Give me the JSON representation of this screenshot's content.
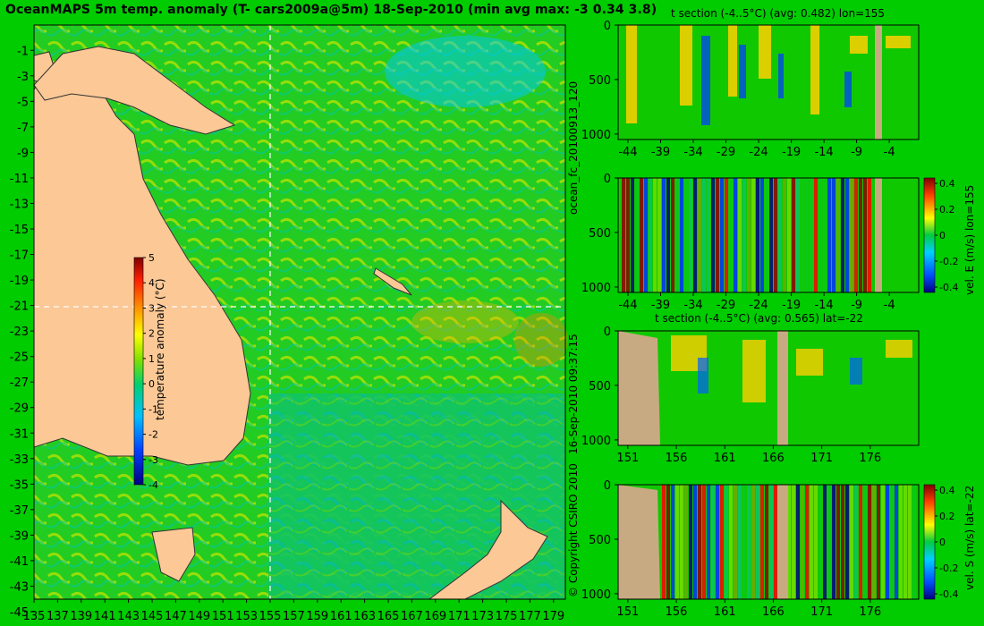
{
  "title": "OceanMAPS 5m temp. anomaly (T- cars2009a@5m) 18-Sep-2010 (min avg max: -3 0.34 3.8)",
  "colors": {
    "background": "#00cc00",
    "land": "#fbc896",
    "section_land": "#c8aa82",
    "dashed_line": "#ffffff"
  },
  "side_labels": {
    "forecast_id": "ocean_fc_20100913_120",
    "run_time": "16-Sep-2010 09:37:15",
    "copyright": "© Copyright CSIRO 2010"
  },
  "chart_data": [
    {
      "type": "heatmap",
      "id": "map",
      "title": "OceanMAPS 5m temp. anomaly (T- cars2009a@5m) 18-Sep-2010 (min avg max: -3 0.34 3.8)",
      "x_ticks": [
        "135",
        "137",
        "139",
        "141",
        "143",
        "145",
        "147",
        "149",
        "151",
        "153",
        "155",
        "157",
        "159",
        "161",
        "163",
        "165",
        "167",
        "169",
        "171",
        "173",
        "175",
        "177",
        "179"
      ],
      "y_ticks": [
        "-1",
        "-3",
        "-5",
        "-7",
        "-9",
        "-11",
        "-13",
        "-15",
        "-17",
        "-19",
        "-21",
        "-23",
        "-25",
        "-27",
        "-29",
        "-31",
        "-33",
        "-35",
        "-37",
        "-39",
        "-41",
        "-43",
        "-45"
      ],
      "xlim": [
        135,
        180
      ],
      "ylim": [
        -45,
        0
      ],
      "section_lon": 155,
      "section_lat": -22,
      "stats": {
        "min": -3,
        "avg": 0.34,
        "max": 3.8
      },
      "colorbar": {
        "label": "temperature anomaly (°C)",
        "ticks": [
          "5",
          "4",
          "3",
          "2",
          "1",
          "0",
          "-1",
          "-2",
          "-3",
          "-4"
        ],
        "range": [
          -4,
          5
        ]
      }
    },
    {
      "type": "heatmap",
      "id": "t-section-lon",
      "title": "t section (-4..5°C) (avg: 0.482) lon=155",
      "x_ticks": [
        "-44",
        "-39",
        "-34",
        "-29",
        "-24",
        "-19",
        "-14",
        "-9",
        "-4"
      ],
      "y_ticks": [
        "0",
        "500",
        "1000"
      ],
      "avg": 0.482
    },
    {
      "type": "heatmap",
      "id": "vel-e-section",
      "title": "",
      "x_ticks": [
        "-44",
        "-39",
        "-34",
        "-29",
        "-24",
        "-19",
        "-14",
        "-9",
        "-4"
      ],
      "y_ticks": [
        "0",
        "500",
        "1000"
      ],
      "colorbar": {
        "label": "vel. E (m/s) lon=155",
        "ticks": [
          "0.4",
          "0.2",
          "0",
          "-0.2",
          "-0.4"
        ]
      }
    },
    {
      "type": "heatmap",
      "id": "t-section-lat",
      "title": "t section (-4..5°C) (avg: 0.565) lat=-22",
      "x_ticks": [
        "151",
        "156",
        "161",
        "166",
        "171",
        "176"
      ],
      "y_ticks": [
        "0",
        "500",
        "1000"
      ],
      "avg": 0.565
    },
    {
      "type": "heatmap",
      "id": "vel-s-section",
      "title": "",
      "x_ticks": [
        "151",
        "156",
        "161",
        "166",
        "171",
        "176"
      ],
      "y_ticks": [
        "0",
        "500",
        "1000"
      ],
      "colorbar": {
        "label": "vel. S (m/s) lat=-22",
        "ticks": [
          "0.4",
          "0.2",
          "0",
          "-0.2",
          "-0.4"
        ]
      }
    }
  ]
}
